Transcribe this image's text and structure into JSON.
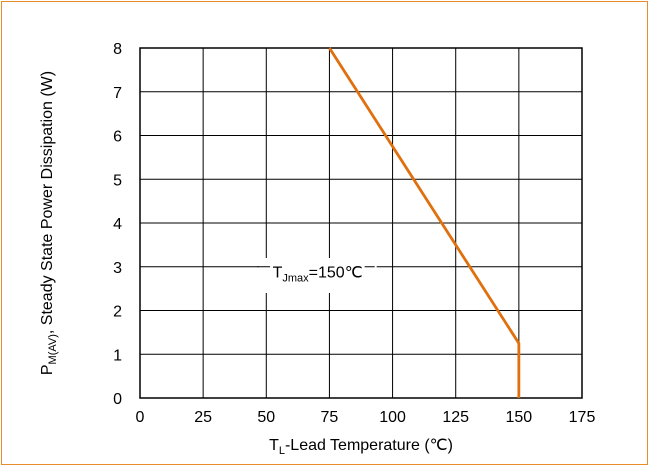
{
  "chart_data": {
    "type": "line",
    "title": "",
    "xlabel": {
      "main": "T",
      "sub": "L",
      "rest": "-Lead Temperature (℃)"
    },
    "ylabel": {
      "main": "P",
      "sub": "M(AV)",
      "rest": ", Steady State Power Dissipation (W)"
    },
    "xlim": [
      0,
      175
    ],
    "ylim": [
      0,
      8
    ],
    "xticks": [
      "0",
      "25",
      "50",
      "75",
      "100",
      "125",
      "150",
      "175"
    ],
    "yticks": [
      "0",
      "1",
      "2",
      "3",
      "4",
      "5",
      "6",
      "7",
      "8"
    ],
    "grid": true,
    "series": [
      {
        "color": "#e06f0e",
        "points": [
          [
            75,
            8
          ],
          [
            150,
            1.25
          ],
          [
            150,
            0
          ]
        ]
      }
    ],
    "annotation": {
      "main": "T",
      "sub": "Jmax",
      "rest": "=150℃"
    }
  },
  "colors": {
    "border": "#e98d2c",
    "line": "#e06f0e",
    "grid": "#000000"
  }
}
